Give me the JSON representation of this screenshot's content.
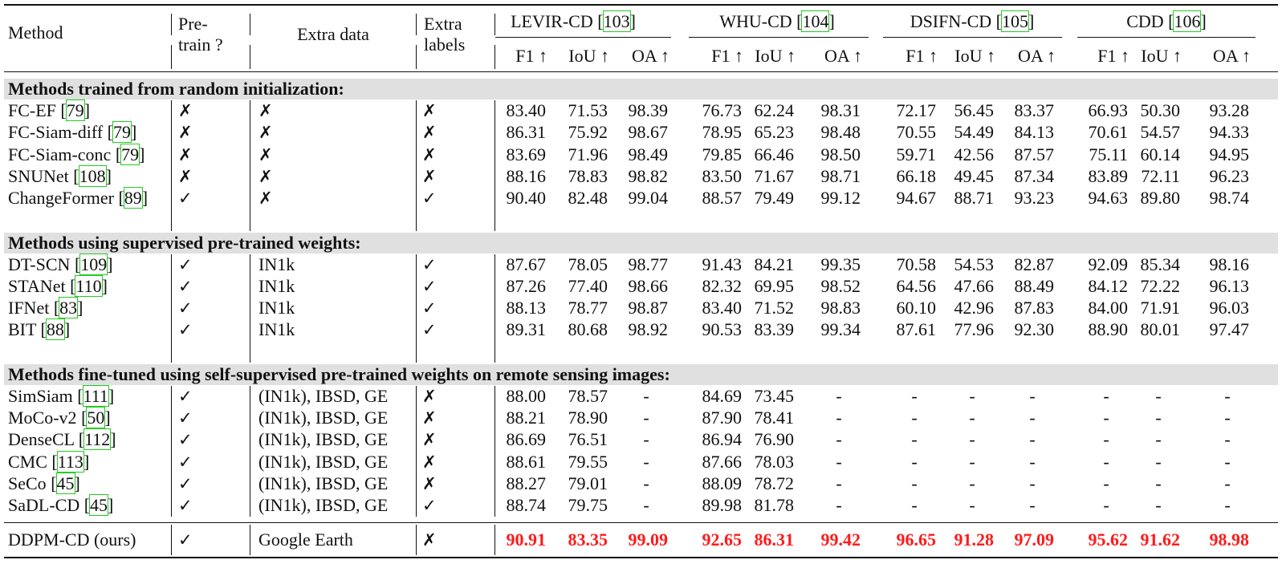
{
  "header": {
    "method": "Method",
    "pretrain_line1": "Pre-",
    "pretrain_line2": "train ?",
    "extra_data": "Extra data",
    "extra_labels_line1": "Extra",
    "extra_labels_line2": "labels",
    "datasets": [
      {
        "name": "LEVIR-CD",
        "ref": "103"
      },
      {
        "name": "WHU-CD",
        "ref": "104"
      },
      {
        "name": "DSIFN-CD",
        "ref": "105"
      },
      {
        "name": "CDD",
        "ref": "106"
      }
    ],
    "metrics": [
      "F1 ↑",
      "IoU ↑",
      "OA ↑"
    ]
  },
  "sections": [
    {
      "title": "Methods trained from random initialization:",
      "rows": [
        {
          "name": "FC-EF",
          "ref": "79",
          "pretrain": "✗",
          "extra_data": "✗",
          "labels": "✗",
          "values": [
            "83.40",
            "71.53",
            "98.39",
            "76.73",
            "62.24",
            "98.31",
            "72.17",
            "56.45",
            "83.37",
            "66.93",
            "50.30",
            "93.28"
          ]
        },
        {
          "name": "FC-Siam-diff",
          "ref": "79",
          "pretrain": "✗",
          "extra_data": "✗",
          "labels": "✗",
          "values": [
            "86.31",
            "75.92",
            "98.67",
            "78.95",
            "65.23",
            "98.48",
            "70.55",
            "54.49",
            "84.13",
            "70.61",
            "54.57",
            "94.33"
          ]
        },
        {
          "name": "FC-Siam-conc",
          "ref": "79",
          "pretrain": "✗",
          "extra_data": "✗",
          "labels": "✗",
          "values": [
            "83.69",
            "71.96",
            "98.49",
            "79.85",
            "66.46",
            "98.50",
            "59.71",
            "42.56",
            "87.57",
            "75.11",
            "60.14",
            "94.95"
          ]
        },
        {
          "name": "SNUNet",
          "ref": "108",
          "pretrain": "✗",
          "extra_data": "✗",
          "labels": "✗",
          "values": [
            "88.16",
            "78.83",
            "98.82",
            "83.50",
            "71.67",
            "98.71",
            "66.18",
            "49.45",
            "87.34",
            "83.89",
            "72.11",
            "96.23"
          ]
        },
        {
          "name": "ChangeFormer",
          "ref": "89",
          "pretrain": "✓",
          "extra_data": "✗",
          "labels": "✓",
          "values": [
            "90.40",
            "82.48",
            "99.04",
            "88.57",
            "79.49",
            "99.12",
            "94.67",
            "88.71",
            "93.23",
            "94.63",
            "89.80",
            "98.74"
          ]
        }
      ]
    },
    {
      "title": "Methods using supervised pre-trained weights:",
      "rows": [
        {
          "name": "DT-SCN",
          "ref": "109",
          "pretrain": "✓",
          "extra_data": "IN1k",
          "labels": "✓",
          "values": [
            "87.67",
            "78.05",
            "98.77",
            "91.43",
            "84.21",
            "99.35",
            "70.58",
            "54.53",
            "82.87",
            "92.09",
            "85.34",
            "98.16"
          ]
        },
        {
          "name": "STANet",
          "ref": "110",
          "pretrain": "✓",
          "extra_data": "IN1k",
          "labels": "✓",
          "values": [
            "87.26",
            "77.40",
            "98.66",
            "82.32",
            "69.95",
            "98.52",
            "64.56",
            "47.66",
            "88.49",
            "84.12",
            "72.22",
            "96.13"
          ]
        },
        {
          "name": "IFNet",
          "ref": "83",
          "pretrain": "✓",
          "extra_data": "IN1k",
          "labels": "✓",
          "values": [
            "88.13",
            "78.77",
            "98.87",
            "83.40",
            "71.52",
            "98.83",
            "60.10",
            "42.96",
            "87.83",
            "84.00",
            "71.91",
            "96.03"
          ]
        },
        {
          "name": "BIT",
          "ref": "88",
          "pretrain": "✓",
          "extra_data": "IN1k",
          "labels": "✓",
          "values": [
            "89.31",
            "80.68",
            "98.92",
            "90.53",
            "83.39",
            "99.34",
            "87.61",
            "77.96",
            "92.30",
            "88.90",
            "80.01",
            "97.47"
          ]
        }
      ]
    },
    {
      "title": "Methods fine-tuned using self-supervised pre-trained weights on remote sensing images:",
      "rows": [
        {
          "name": "SimSiam",
          "ref": "111",
          "pretrain": "✓",
          "extra_data": "(IN1k), IBSD, GE",
          "labels": "✗",
          "values": [
            "88.00",
            "78.57",
            "-",
            "84.69",
            "73.45",
            "-",
            "-",
            "-",
            "-",
            "-",
            "-",
            "-"
          ]
        },
        {
          "name": "MoCo-v2",
          "ref": "50",
          "pretrain": "✓",
          "extra_data": "(IN1k), IBSD, GE",
          "labels": "✗",
          "values": [
            "88.21",
            "78.90",
            "-",
            "87.90",
            "78.41",
            "-",
            "-",
            "-",
            "-",
            "-",
            "-",
            "-"
          ]
        },
        {
          "name": "DenseCL",
          "ref": "112",
          "pretrain": "✓",
          "extra_data": "(IN1k), IBSD, GE",
          "labels": "✗",
          "values": [
            "86.69",
            "76.51",
            "-",
            "86.94",
            "76.90",
            "-",
            "-",
            "-",
            "-",
            "-",
            "-",
            "-"
          ]
        },
        {
          "name": "CMC",
          "ref": "113",
          "pretrain": "✓",
          "extra_data": "(IN1k), IBSD, GE",
          "labels": "✗",
          "values": [
            "88.61",
            "79.55",
            "-",
            "87.66",
            "78.03",
            "-",
            "-",
            "-",
            "-",
            "-",
            "-",
            "-"
          ]
        },
        {
          "name": "SeCo",
          "ref": "45",
          "pretrain": "✓",
          "extra_data": "(IN1k), IBSD, GE",
          "labels": "✗",
          "values": [
            "88.27",
            "79.01",
            "-",
            "88.09",
            "78.72",
            "-",
            "-",
            "-",
            "-",
            "-",
            "-",
            "-"
          ]
        },
        {
          "name": "SaDL-CD",
          "ref": "45",
          "pretrain": "✓",
          "extra_data": "(IN1k), IBSD, GE",
          "labels": "✓",
          "values": [
            "88.74",
            "79.75",
            "-",
            "89.98",
            "81.78",
            "-",
            "-",
            "-",
            "-",
            "-",
            "-",
            "-"
          ]
        }
      ]
    }
  ],
  "ours": {
    "name": "DDPM-CD (ours)",
    "pretrain": "✓",
    "extra_data": "Google Earth",
    "labels": "✗",
    "values": [
      "90.91",
      "83.35",
      "99.09",
      "92.65",
      "86.31",
      "99.42",
      "96.65",
      "91.28",
      "97.09",
      "95.62",
      "91.62",
      "98.98"
    ],
    "highlight_color": "#ff1a1a"
  },
  "colors": {
    "section_band": "#e0e0e0",
    "citation_box": "#22cc22",
    "best": "#ff1a1a"
  }
}
